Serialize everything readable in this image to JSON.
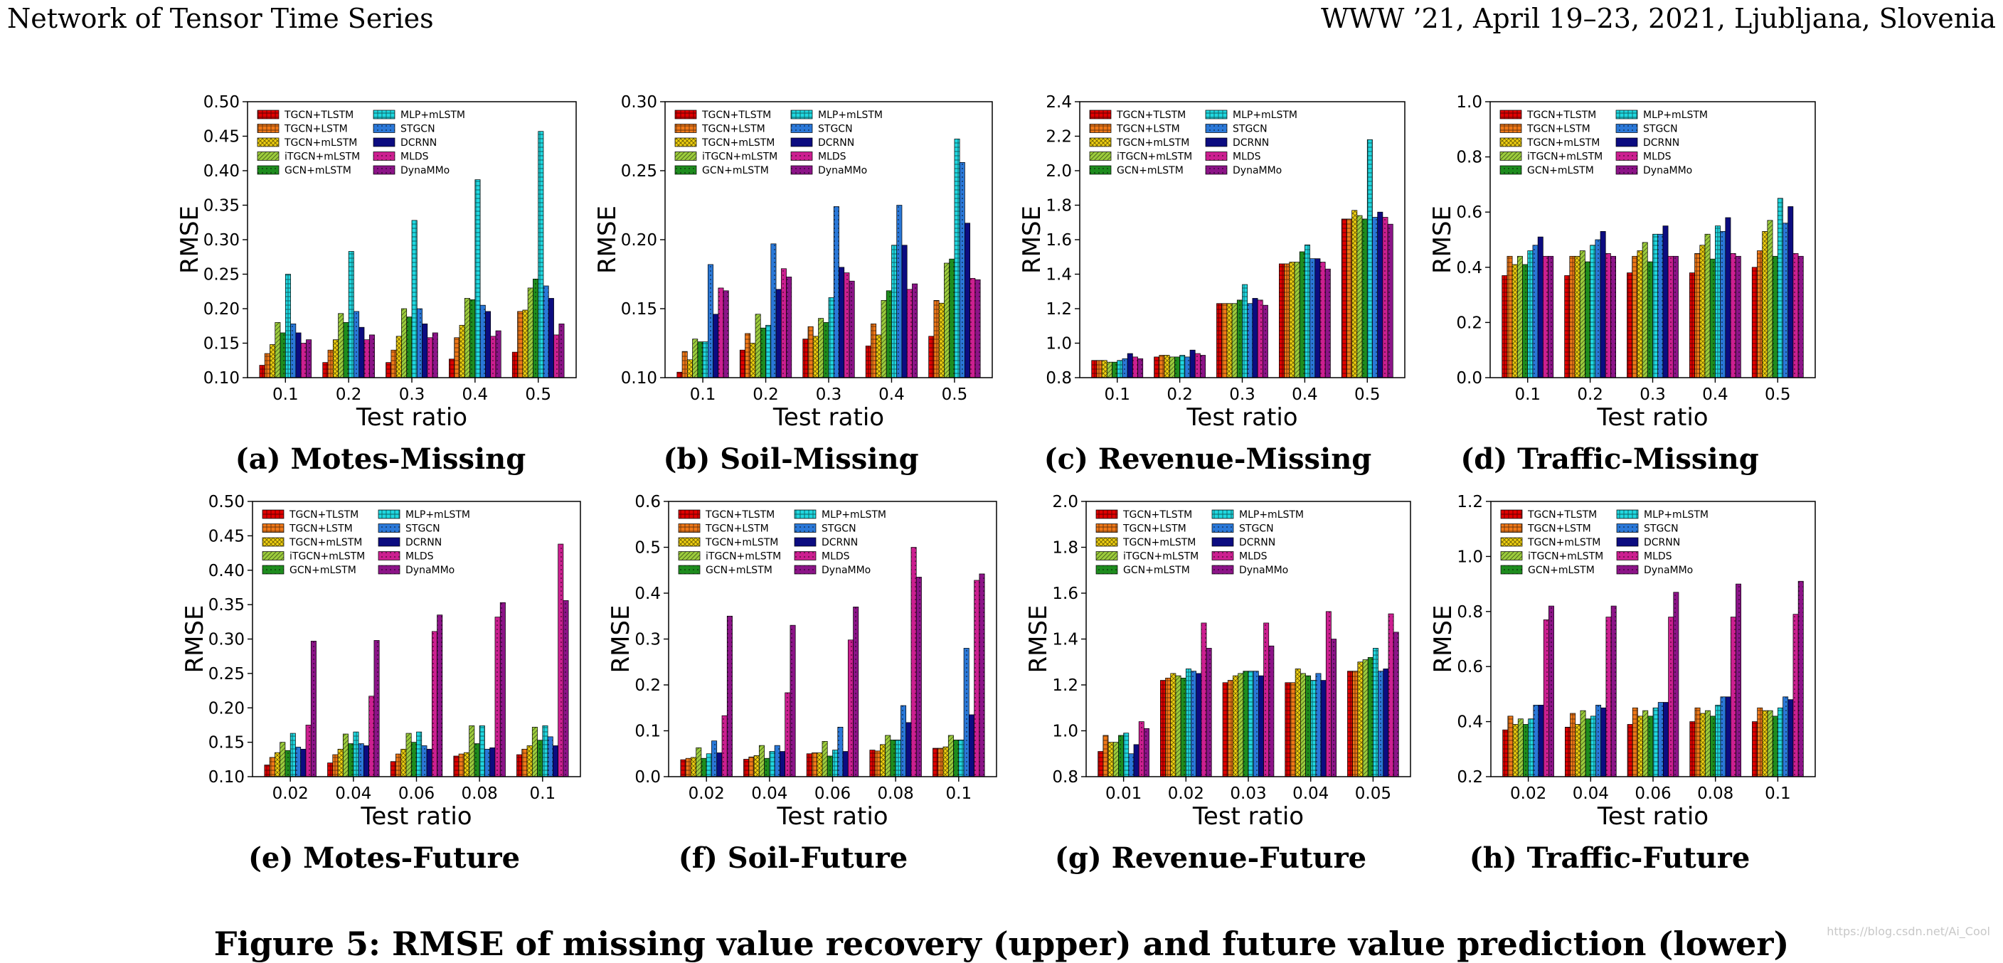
{
  "header": {
    "left": "Network of Tensor Time Series",
    "right": "WWW ’21, April 19–23, 2021, Ljubljana, Slovenia"
  },
  "figure_caption": "Figure 5: RMSE of missing value recovery (upper) and future value prediction (lower)",
  "watermark": "https://blog.csdn.net/Ai_Cool",
  "series_names": [
    "TGCN+TLSTM",
    "TGCN+LSTM",
    "TGCN+mLSTM",
    "iTGCN+mLSTM",
    "GCN+mLSTM",
    "MLP+mLSTM",
    "STGCN",
    "DCRNN",
    "MLDS",
    "DynaMMo"
  ],
  "series_colors": [
    "#e00000",
    "#f07818",
    "#f0d010",
    "#9ccc3c",
    "#1e8c1e",
    "#20d8e0",
    "#2a78d8",
    "#0c0c80",
    "#cc1f90",
    "#8c1488"
  ],
  "chart_data": [
    {
      "type": "bar",
      "caption": "(a) Motes-Missing",
      "xlabel": "Test ratio",
      "ylabel": "RMSE",
      "ylim": [
        0.1,
        0.5
      ],
      "yticks": [
        "0.10",
        "0.15",
        "0.20",
        "0.25",
        "0.30",
        "0.35",
        "0.40",
        "0.45",
        "0.50"
      ],
      "categories": [
        "0.1",
        "0.2",
        "0.3",
        "0.4",
        "0.5"
      ],
      "legend": "top-left",
      "series": [
        {
          "name": "TGCN+TLSTM",
          "values": [
            0.118,
            0.122,
            0.122,
            0.127,
            0.137
          ]
        },
        {
          "name": "TGCN+LSTM",
          "values": [
            0.135,
            0.14,
            0.14,
            0.158,
            0.196
          ]
        },
        {
          "name": "TGCN+mLSTM",
          "values": [
            0.148,
            0.155,
            0.16,
            0.176,
            0.198
          ]
        },
        {
          "name": "iTGCN+mLSTM",
          "values": [
            0.18,
            0.193,
            0.2,
            0.215,
            0.23
          ]
        },
        {
          "name": "GCN+mLSTM",
          "values": [
            0.165,
            0.18,
            0.188,
            0.213,
            0.243
          ]
        },
        {
          "name": "MLP+mLSTM",
          "values": [
            0.25,
            0.283,
            0.328,
            0.387,
            0.457
          ]
        },
        {
          "name": "STGCN",
          "values": [
            0.178,
            0.196,
            0.2,
            0.205,
            0.233
          ]
        },
        {
          "name": "DCRNN",
          "values": [
            0.165,
            0.173,
            0.178,
            0.196,
            0.215
          ]
        },
        {
          "name": "MLDS",
          "values": [
            0.15,
            0.155,
            0.158,
            0.16,
            0.162
          ]
        },
        {
          "name": "DynaMMo",
          "values": [
            0.155,
            0.162,
            0.165,
            0.168,
            0.178
          ]
        }
      ]
    },
    {
      "type": "bar",
      "caption": "(b) Soil-Missing",
      "xlabel": "Test ratio",
      "ylabel": "RMSE",
      "ylim": [
        0.1,
        0.3
      ],
      "yticks": [
        "0.10",
        "0.15",
        "0.20",
        "0.25",
        "0.30"
      ],
      "categories": [
        "0.1",
        "0.2",
        "0.3",
        "0.4",
        "0.5"
      ],
      "legend": "top-left",
      "series": [
        {
          "name": "TGCN+TLSTM",
          "values": [
            0.104,
            0.12,
            0.128,
            0.123,
            0.13
          ]
        },
        {
          "name": "TGCN+LSTM",
          "values": [
            0.119,
            0.132,
            0.137,
            0.139,
            0.156
          ]
        },
        {
          "name": "TGCN+mLSTM",
          "values": [
            0.113,
            0.125,
            0.13,
            0.131,
            0.154
          ]
        },
        {
          "name": "iTGCN+mLSTM",
          "values": [
            0.128,
            0.146,
            0.143,
            0.156,
            0.183
          ]
        },
        {
          "name": "GCN+mLSTM",
          "values": [
            0.126,
            0.136,
            0.14,
            0.163,
            0.186
          ]
        },
        {
          "name": "MLP+mLSTM",
          "values": [
            0.126,
            0.138,
            0.158,
            0.196,
            0.273
          ]
        },
        {
          "name": "STGCN",
          "values": [
            0.182,
            0.197,
            0.224,
            0.225,
            0.256
          ]
        },
        {
          "name": "DCRNN",
          "values": [
            0.146,
            0.164,
            0.18,
            0.196,
            0.212
          ]
        },
        {
          "name": "MLDS",
          "values": [
            0.165,
            0.179,
            0.176,
            0.164,
            0.172
          ]
        },
        {
          "name": "DynaMMo",
          "values": [
            0.163,
            0.173,
            0.17,
            0.168,
            0.171
          ]
        }
      ]
    },
    {
      "type": "bar",
      "caption": "(c) Revenue-Missing",
      "xlabel": "Test ratio",
      "ylabel": "RMSE",
      "ylim": [
        0.8,
        2.4
      ],
      "yticks": [
        "0.8",
        "1.0",
        "1.2",
        "1.4",
        "1.6",
        "1.8",
        "2.0",
        "2.2",
        "2.4"
      ],
      "categories": [
        "0.1",
        "0.2",
        "0.3",
        "0.4",
        "0.5"
      ],
      "legend": "top-left",
      "series": [
        {
          "name": "TGCN+TLSTM",
          "values": [
            0.9,
            0.92,
            1.23,
            1.46,
            1.72
          ]
        },
        {
          "name": "TGCN+LSTM",
          "values": [
            0.9,
            0.93,
            1.23,
            1.46,
            1.72
          ]
        },
        {
          "name": "TGCN+mLSTM",
          "values": [
            0.9,
            0.93,
            1.23,
            1.47,
            1.77
          ]
        },
        {
          "name": "iTGCN+mLSTM",
          "values": [
            0.89,
            0.92,
            1.23,
            1.47,
            1.74
          ]
        },
        {
          "name": "GCN+mLSTM",
          "values": [
            0.89,
            0.92,
            1.25,
            1.53,
            1.72
          ]
        },
        {
          "name": "MLP+mLSTM",
          "values": [
            0.9,
            0.93,
            1.34,
            1.57,
            2.18
          ]
        },
        {
          "name": "STGCN",
          "values": [
            0.91,
            0.92,
            1.23,
            1.49,
            1.73
          ]
        },
        {
          "name": "DCRNN",
          "values": [
            0.94,
            0.96,
            1.26,
            1.49,
            1.76
          ]
        },
        {
          "name": "MLDS",
          "values": [
            0.92,
            0.94,
            1.25,
            1.47,
            1.73
          ]
        },
        {
          "name": "DynaMMo",
          "values": [
            0.91,
            0.93,
            1.22,
            1.43,
            1.69
          ]
        }
      ]
    },
    {
      "type": "bar",
      "caption": "(d) Traffic-Missing",
      "xlabel": "Test ratio",
      "ylabel": "RMSE",
      "ylim": [
        0.0,
        1.0
      ],
      "yticks": [
        "0.0",
        "0.2",
        "0.4",
        "0.6",
        "0.8",
        "1.0"
      ],
      "categories": [
        "0.1",
        "0.2",
        "0.3",
        "0.4",
        "0.5"
      ],
      "legend": "top-left",
      "series": [
        {
          "name": "TGCN+TLSTM",
          "values": [
            0.37,
            0.37,
            0.38,
            0.38,
            0.4
          ]
        },
        {
          "name": "TGCN+LSTM",
          "values": [
            0.44,
            0.44,
            0.44,
            0.45,
            0.46
          ]
        },
        {
          "name": "TGCN+mLSTM",
          "values": [
            0.41,
            0.44,
            0.46,
            0.48,
            0.53
          ]
        },
        {
          "name": "iTGCN+mLSTM",
          "values": [
            0.44,
            0.46,
            0.49,
            0.52,
            0.57
          ]
        },
        {
          "name": "GCN+mLSTM",
          "values": [
            0.41,
            0.42,
            0.42,
            0.43,
            0.44
          ]
        },
        {
          "name": "MLP+mLSTM",
          "values": [
            0.46,
            0.48,
            0.52,
            0.55,
            0.65
          ]
        },
        {
          "name": "STGCN",
          "values": [
            0.48,
            0.5,
            0.52,
            0.53,
            0.56
          ]
        },
        {
          "name": "DCRNN",
          "values": [
            0.51,
            0.53,
            0.55,
            0.58,
            0.62
          ]
        },
        {
          "name": "MLDS",
          "values": [
            0.44,
            0.45,
            0.44,
            0.45,
            0.45
          ]
        },
        {
          "name": "DynaMMo",
          "values": [
            0.44,
            0.44,
            0.44,
            0.44,
            0.44
          ]
        }
      ]
    },
    {
      "type": "bar",
      "caption": "(e) Motes-Future",
      "xlabel": "Test ratio",
      "ylabel": "RMSE",
      "ylim": [
        0.1,
        0.5
      ],
      "yticks": [
        "0.10",
        "0.15",
        "0.20",
        "0.25",
        "0.30",
        "0.35",
        "0.40",
        "0.45",
        "0.50"
      ],
      "categories": [
        "0.02",
        "0.04",
        "0.06",
        "0.08",
        "0.1"
      ],
      "legend": "top-left",
      "series": [
        {
          "name": "TGCN+TLSTM",
          "values": [
            0.117,
            0.12,
            0.122,
            0.13,
            0.132
          ]
        },
        {
          "name": "TGCN+LSTM",
          "values": [
            0.128,
            0.132,
            0.133,
            0.133,
            0.14
          ]
        },
        {
          "name": "TGCN+mLSTM",
          "values": [
            0.135,
            0.14,
            0.14,
            0.135,
            0.145
          ]
        },
        {
          "name": "iTGCN+mLSTM",
          "values": [
            0.15,
            0.162,
            0.163,
            0.174,
            0.172
          ]
        },
        {
          "name": "GCN+mLSTM",
          "values": [
            0.138,
            0.148,
            0.15,
            0.148,
            0.153
          ]
        },
        {
          "name": "MLP+mLSTM",
          "values": [
            0.163,
            0.165,
            0.165,
            0.174,
            0.174
          ]
        },
        {
          "name": "STGCN",
          "values": [
            0.143,
            0.148,
            0.145,
            0.14,
            0.158
          ]
        },
        {
          "name": "DCRNN",
          "values": [
            0.14,
            0.145,
            0.14,
            0.142,
            0.145
          ]
        },
        {
          "name": "MLDS",
          "values": [
            0.175,
            0.217,
            0.311,
            0.332,
            0.438
          ]
        },
        {
          "name": "DynaMMo",
          "values": [
            0.297,
            0.298,
            0.335,
            0.353,
            0.356
          ]
        }
      ]
    },
    {
      "type": "bar",
      "caption": "(f) Soil-Future",
      "xlabel": "Test ratio",
      "ylabel": "RMSE",
      "ylim": [
        0.0,
        0.6
      ],
      "yticks": [
        "0.0",
        "0.1",
        "0.2",
        "0.3",
        "0.4",
        "0.5",
        "0.6"
      ],
      "categories": [
        "0.02",
        "0.04",
        "0.06",
        "0.08",
        "0.1"
      ],
      "legend": "top-left",
      "series": [
        {
          "name": "TGCN+TLSTM",
          "values": [
            0.037,
            0.038,
            0.05,
            0.058,
            0.062
          ]
        },
        {
          "name": "TGCN+LSTM",
          "values": [
            0.04,
            0.043,
            0.052,
            0.056,
            0.062
          ]
        },
        {
          "name": "TGCN+mLSTM",
          "values": [
            0.042,
            0.046,
            0.052,
            0.07,
            0.065
          ]
        },
        {
          "name": "iTGCN+mLSTM",
          "values": [
            0.063,
            0.068,
            0.077,
            0.09,
            0.09
          ]
        },
        {
          "name": "GCN+mLSTM",
          "values": [
            0.04,
            0.04,
            0.045,
            0.08,
            0.08
          ]
        },
        {
          "name": "MLP+mLSTM",
          "values": [
            0.05,
            0.055,
            0.058,
            0.08,
            0.08
          ]
        },
        {
          "name": "STGCN",
          "values": [
            0.078,
            0.068,
            0.108,
            0.155,
            0.28
          ]
        },
        {
          "name": "DCRNN",
          "values": [
            0.052,
            0.055,
            0.055,
            0.118,
            0.135
          ]
        },
        {
          "name": "MLDS",
          "values": [
            0.133,
            0.183,
            0.298,
            0.5,
            0.428
          ]
        },
        {
          "name": "DynaMMo",
          "values": [
            0.35,
            0.33,
            0.37,
            0.435,
            0.442
          ]
        }
      ]
    },
    {
      "type": "bar",
      "caption": "(g) Revenue-Future",
      "xlabel": "Test ratio",
      "ylabel": "RMSE",
      "ylim": [
        0.8,
        2.0
      ],
      "yticks": [
        "0.8",
        "1.0",
        "1.2",
        "1.4",
        "1.6",
        "1.8",
        "2.0"
      ],
      "categories": [
        "0.01",
        "0.02",
        "0.03",
        "0.04",
        "0.05"
      ],
      "legend": "top-left",
      "series": [
        {
          "name": "TGCN+TLSTM",
          "values": [
            0.91,
            1.22,
            1.21,
            1.21,
            1.26
          ]
        },
        {
          "name": "TGCN+LSTM",
          "values": [
            0.98,
            1.23,
            1.22,
            1.21,
            1.26
          ]
        },
        {
          "name": "TGCN+mLSTM",
          "values": [
            0.95,
            1.25,
            1.24,
            1.27,
            1.3
          ]
        },
        {
          "name": "iTGCN+mLSTM",
          "values": [
            0.95,
            1.24,
            1.25,
            1.25,
            1.31
          ]
        },
        {
          "name": "GCN+mLSTM",
          "values": [
            0.98,
            1.23,
            1.26,
            1.24,
            1.32
          ]
        },
        {
          "name": "MLP+mLSTM",
          "values": [
            0.99,
            1.27,
            1.26,
            1.22,
            1.36
          ]
        },
        {
          "name": "STGCN",
          "values": [
            0.9,
            1.26,
            1.26,
            1.25,
            1.26
          ]
        },
        {
          "name": "DCRNN",
          "values": [
            0.94,
            1.25,
            1.24,
            1.22,
            1.27
          ]
        },
        {
          "name": "MLDS",
          "values": [
            1.04,
            1.47,
            1.47,
            1.52,
            1.51
          ]
        },
        {
          "name": "DynaMMo",
          "values": [
            1.01,
            1.36,
            1.37,
            1.4,
            1.43
          ]
        }
      ]
    },
    {
      "type": "bar",
      "caption": "(h) Traffic-Future",
      "xlabel": "Test ratio",
      "ylabel": "RMSE",
      "ylim": [
        0.2,
        1.2
      ],
      "yticks": [
        "0.2",
        "0.4",
        "0.6",
        "0.8",
        "1.0",
        "1.2"
      ],
      "categories": [
        "0.02",
        "0.04",
        "0.06",
        "0.08",
        "0.1"
      ],
      "legend": "top-left",
      "series": [
        {
          "name": "TGCN+TLSTM",
          "values": [
            0.37,
            0.38,
            0.39,
            0.4,
            0.4
          ]
        },
        {
          "name": "TGCN+LSTM",
          "values": [
            0.42,
            0.43,
            0.45,
            0.45,
            0.45
          ]
        },
        {
          "name": "TGCN+mLSTM",
          "values": [
            0.39,
            0.39,
            0.42,
            0.43,
            0.44
          ]
        },
        {
          "name": "iTGCN+mLSTM",
          "values": [
            0.41,
            0.44,
            0.44,
            0.44,
            0.44
          ]
        },
        {
          "name": "GCN+mLSTM",
          "values": [
            0.39,
            0.41,
            0.42,
            0.42,
            0.42
          ]
        },
        {
          "name": "MLP+mLSTM",
          "values": [
            0.41,
            0.42,
            0.45,
            0.46,
            0.45
          ]
        },
        {
          "name": "STGCN",
          "values": [
            0.46,
            0.46,
            0.47,
            0.49,
            0.49
          ]
        },
        {
          "name": "DCRNN",
          "values": [
            0.46,
            0.45,
            0.47,
            0.49,
            0.48
          ]
        },
        {
          "name": "MLDS",
          "values": [
            0.77,
            0.78,
            0.78,
            0.78,
            0.79
          ]
        },
        {
          "name": "DynaMMo",
          "values": [
            0.82,
            0.82,
            0.87,
            0.9,
            0.91
          ]
        }
      ]
    }
  ]
}
